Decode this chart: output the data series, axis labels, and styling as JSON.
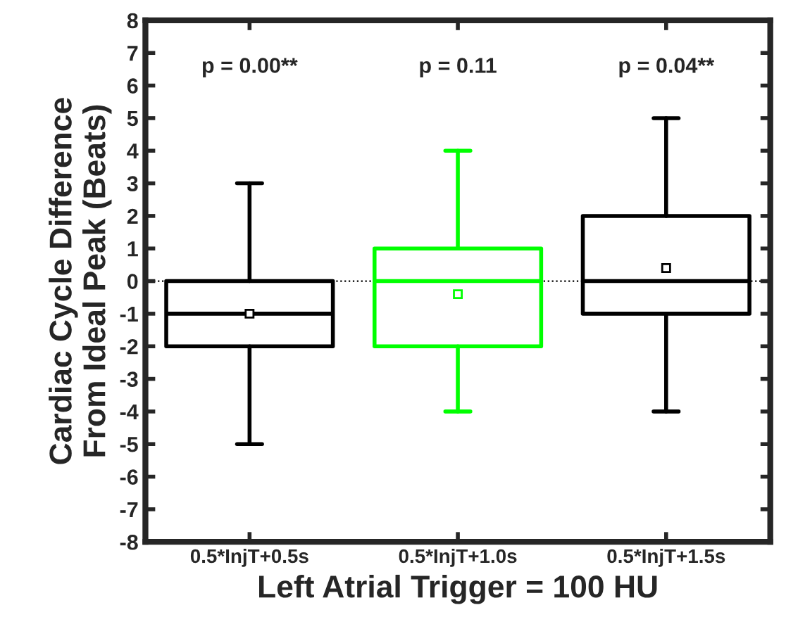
{
  "chart_data": {
    "type": "box",
    "xlabel": "Left Atrial Trigger = 100 HU",
    "ylabel": "Cardiac Cycle Difference\nFrom Ideal Peak (Beats)",
    "categories": [
      "0.5*InjT+0.5s",
      "0.5*InjT+1.0s",
      "0.5*InjT+1.5s"
    ],
    "colors": [
      "#000000",
      "#00ff00",
      "#000000"
    ],
    "boxes": [
      {
        "low": -5,
        "q1": -2,
        "median": -1,
        "q3": 0,
        "high": 3,
        "mean": -1
      },
      {
        "low": -4,
        "q1": -2,
        "median": 0,
        "q3": 1,
        "high": 4,
        "mean": -0.4
      },
      {
        "low": -4,
        "q1": -1,
        "median": 0,
        "q3": 2,
        "high": 5,
        "mean": 0.4
      }
    ],
    "ylim": [
      -8,
      8
    ],
    "yticks": [
      -8,
      -7,
      -6,
      -5,
      -4,
      -3,
      -2,
      -1,
      0,
      1,
      2,
      3,
      4,
      5,
      6,
      7,
      8
    ],
    "ref_lines": [
      {
        "axis": "y",
        "value": 0,
        "color": "#000000",
        "line_style": "dotted"
      }
    ],
    "annotations": [
      "p = 0.00**",
      "p = 0.11",
      "p = 0.04**"
    ],
    "grid": false,
    "legend": false
  }
}
